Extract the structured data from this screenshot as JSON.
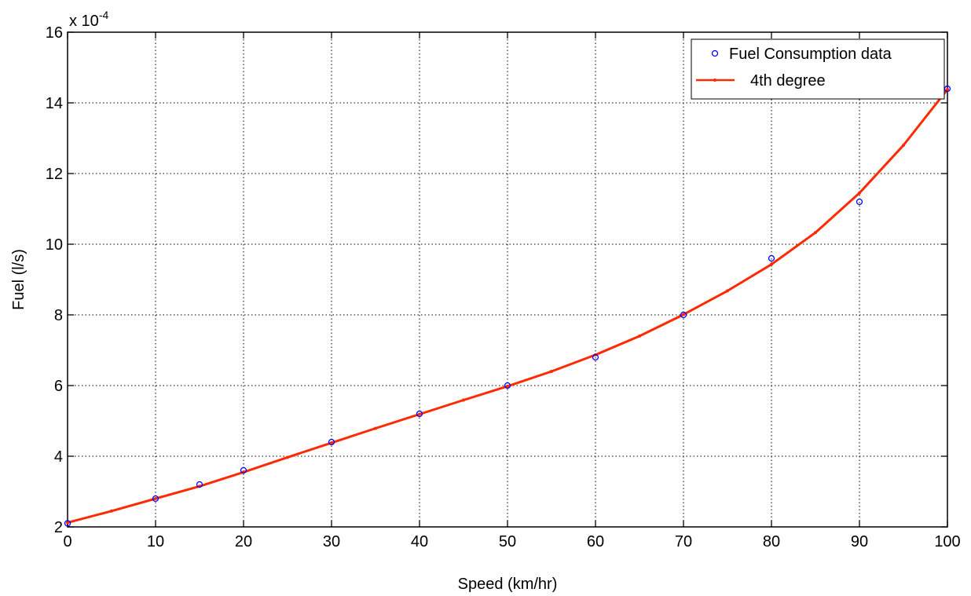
{
  "chart_data": {
    "type": "line",
    "title": "",
    "xlabel": "Speed (km/hr)",
    "ylabel": "Fuel (l/s)",
    "y_exponent_label": "x 10",
    "y_exponent_power": "-4",
    "xlim": [
      0,
      100
    ],
    "ylim": [
      2,
      16
    ],
    "x_ticks": [
      0,
      10,
      20,
      30,
      40,
      50,
      60,
      70,
      80,
      90,
      100
    ],
    "y_ticks": [
      2,
      4,
      6,
      8,
      10,
      12,
      14,
      16
    ],
    "grid": true,
    "legend_position": "top-right",
    "series": [
      {
        "name": "Fuel Consumption data",
        "style": "markers",
        "marker": "circle",
        "color": "#0000ff",
        "x": [
          0,
          10,
          15,
          20,
          30,
          40,
          50,
          60,
          70,
          80,
          90,
          100
        ],
        "y": [
          2.1,
          2.8,
          3.2,
          3.6,
          4.4,
          5.2,
          6.0,
          6.8,
          8.0,
          9.6,
          11.2,
          14.4
        ]
      },
      {
        "name": "4th degree",
        "style": "line",
        "color": "#ff2a00",
        "x": [
          0,
          5,
          10,
          15,
          20,
          25,
          30,
          35,
          40,
          45,
          50,
          55,
          60,
          65,
          70,
          75,
          80,
          85,
          90,
          95,
          100
        ],
        "y": [
          2.12,
          2.45,
          2.8,
          3.15,
          3.55,
          3.97,
          4.38,
          4.79,
          5.19,
          5.59,
          5.98,
          6.4,
          6.87,
          7.4,
          8.01,
          8.68,
          9.43,
          10.33,
          11.45,
          12.8,
          14.38
        ]
      }
    ]
  }
}
